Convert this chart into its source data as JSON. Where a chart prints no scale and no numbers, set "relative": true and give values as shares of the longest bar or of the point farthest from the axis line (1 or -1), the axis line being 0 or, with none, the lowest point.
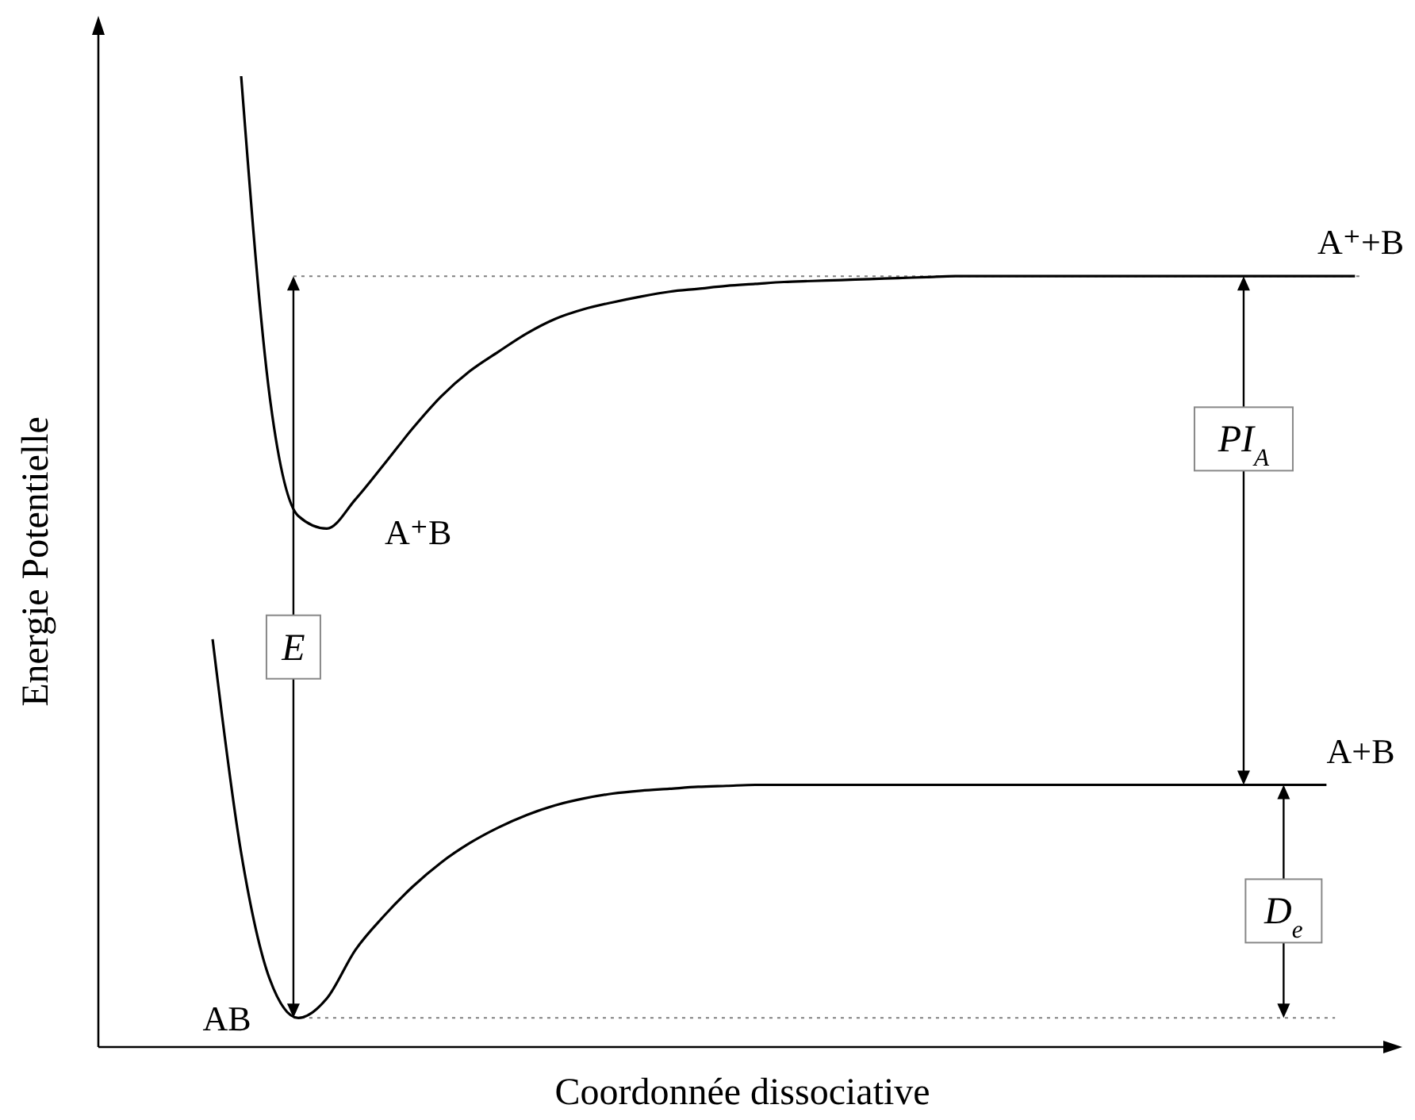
{
  "chart_data": {
    "type": "line",
    "relative": true,
    "xlabel": "Coordonnée dissociative",
    "ylabel": "Energie Potentielle",
    "categories": [
      null,
      null,
      null,
      null,
      null,
      null,
      null,
      null,
      null,
      null,
      null,
      null,
      null,
      null,
      null,
      null,
      null,
      null,
      null,
      null,
      null,
      null,
      null,
      null,
      null,
      null,
      null,
      null,
      null,
      null,
      null,
      null,
      null,
      null,
      null,
      null,
      null,
      null,
      null,
      null,
      null,
      null,
      null,
      null,
      null,
      null
    ],
    "series": [
      {
        "color": "#000000",
        "values": [
          null,
          null,
          null,
          null,
          null,
          1.0,
          0.67,
          0.547,
          0.534,
          0.564,
          0.6,
          0.637,
          0.67,
          0.696,
          0.716,
          0.735,
          0.75,
          0.76,
          0.767,
          0.773,
          0.778,
          0.781,
          0.784,
          0.786,
          0.788,
          0.789,
          0.79,
          0.791,
          0.792,
          0.793,
          0.794,
          0.794,
          0.794,
          0.794,
          0.794,
          0.794,
          0.794,
          0.794,
          0.794,
          0.794,
          0.794,
          0.794,
          0.794,
          0.794,
          0.794,
          null
        ]
      },
      {
        "color": "#000000",
        "values": [
          null,
          null,
          null,
          null,
          0.42,
          0.2,
          0.07,
          0.03,
          0.05,
          0.1,
          0.135,
          0.165,
          0.19,
          0.21,
          0.226,
          0.239,
          0.249,
          0.256,
          0.261,
          0.264,
          0.266,
          0.268,
          0.269,
          0.27,
          0.27,
          0.27,
          0.27,
          0.27,
          0.27,
          0.27,
          0.27,
          0.27,
          0.27,
          0.27,
          0.27,
          0.27,
          0.27,
          0.27,
          0.27,
          0.27,
          0.27,
          0.27,
          0.27,
          0.27,
          null,
          null
        ]
      }
    ],
    "ref_lines": [
      {
        "axis": "y",
        "value": 0.794,
        "color": "#808080",
        "line_style": "dotted"
      },
      {
        "axis": "y",
        "value": 0.03,
        "color": "#808080",
        "line_style": "dotted"
      }
    ],
    "annotations": [
      "A⁺+B",
      "A⁺B",
      "A+B",
      "AB",
      "E",
      "PI$_{A}$",
      "D$_{e}$"
    ],
    "marker": "none",
    "line_style": "solid",
    "legend": false,
    "grid": false
  }
}
